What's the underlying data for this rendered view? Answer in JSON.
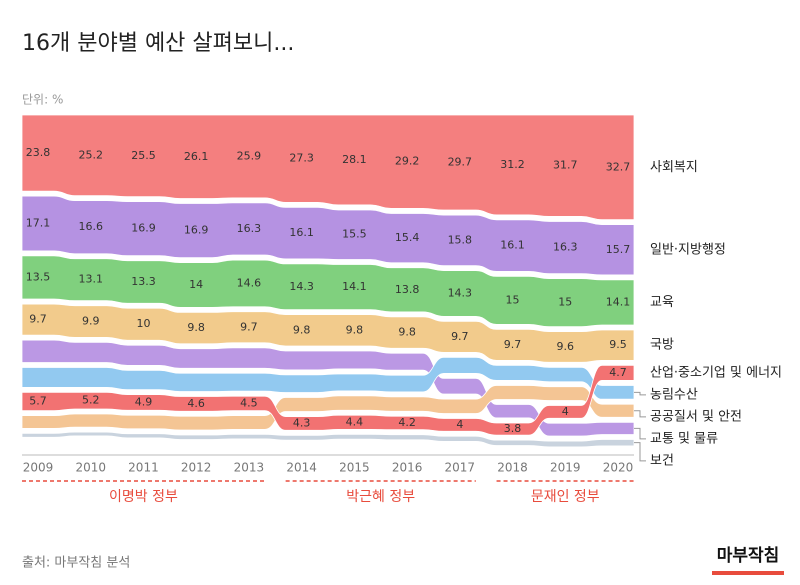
{
  "chart_data": {
    "type": "ribbon",
    "title": "16개 분야별 예산 살펴보니...",
    "unit": "단위: %",
    "categories": [
      "2009",
      "2010",
      "2011",
      "2012",
      "2013",
      "2014",
      "2015",
      "2016",
      "2017",
      "2018",
      "2019",
      "2020"
    ],
    "series": [
      {
        "name": "사회복지",
        "color": "#f47f7f",
        "labels": true,
        "values": [
          23.8,
          25.2,
          25.5,
          26.1,
          25.9,
          27.3,
          28.1,
          29.2,
          29.7,
          31.2,
          31.7,
          32.7
        ]
      },
      {
        "name": "일반·지방행정",
        "color": "#b592e2",
        "labels": true,
        "values": [
          17.1,
          16.6,
          16.9,
          16.9,
          16.3,
          16.1,
          15.5,
          15.4,
          15.8,
          16.1,
          16.3,
          15.7
        ]
      },
      {
        "name": "교육",
        "color": "#80d07e",
        "labels": true,
        "values": [
          13.5,
          13.1,
          13.3,
          14,
          14.6,
          14.3,
          14.1,
          13.8,
          14.3,
          15,
          15,
          14.1
        ]
      },
      {
        "name": "국방",
        "color": "#f2cb8c",
        "labels": true,
        "values": [
          9.7,
          9.9,
          10,
          9.8,
          9.7,
          9.8,
          9.8,
          9.8,
          9.7,
          9.7,
          9.6,
          9.5
        ]
      },
      {
        "name": "산업·중소기업 및 에너지",
        "color": "#f27272",
        "labels": true,
        "values": [
          5.7,
          5.2,
          4.9,
          4.6,
          4.5,
          4.3,
          4.4,
          4.2,
          4,
          3.8,
          4,
          4.7
        ]
      },
      {
        "name": "농림수산",
        "color": "#92c9f0",
        "labels": false,
        "values": [
          6.2,
          6.2,
          6,
          5.7,
          5.6,
          5.5,
          5.3,
          5.2,
          5,
          4.7,
          4.5,
          4.3
        ]
      },
      {
        "name": "공공질서 및 안전",
        "color": "#f4c594",
        "labels": false,
        "values": [
          4,
          4.1,
          4.2,
          4.3,
          4.3,
          4.4,
          4.5,
          4.5,
          4.5,
          4.4,
          4.3,
          4.1
        ]
      },
      {
        "name": "교통 및 물류",
        "color": "#bb98e4",
        "labels": false,
        "values": [
          7,
          6.3,
          6.3,
          6.1,
          6.4,
          5.9,
          5.6,
          5.3,
          4.9,
          4.2,
          4,
          3.8
        ]
      },
      {
        "name": "보건",
        "color": "#c9d3de",
        "labels": false,
        "values": [
          1.2,
          1.2,
          1.3,
          1.4,
          1.4,
          1.5,
          1.5,
          1.6,
          1.6,
          1.7,
          1.8,
          2
        ]
      }
    ],
    "governments": [
      {
        "name": "이명박 정부",
        "years": [
          "2009",
          "2013"
        ]
      },
      {
        "name": "박근혜 정부",
        "years": [
          "2014",
          "2017"
        ]
      },
      {
        "name": "문재인 정부",
        "years": [
          "2018",
          "2020"
        ]
      }
    ]
  },
  "source": "출처: 마부작침 분석",
  "logo": "마부작침"
}
